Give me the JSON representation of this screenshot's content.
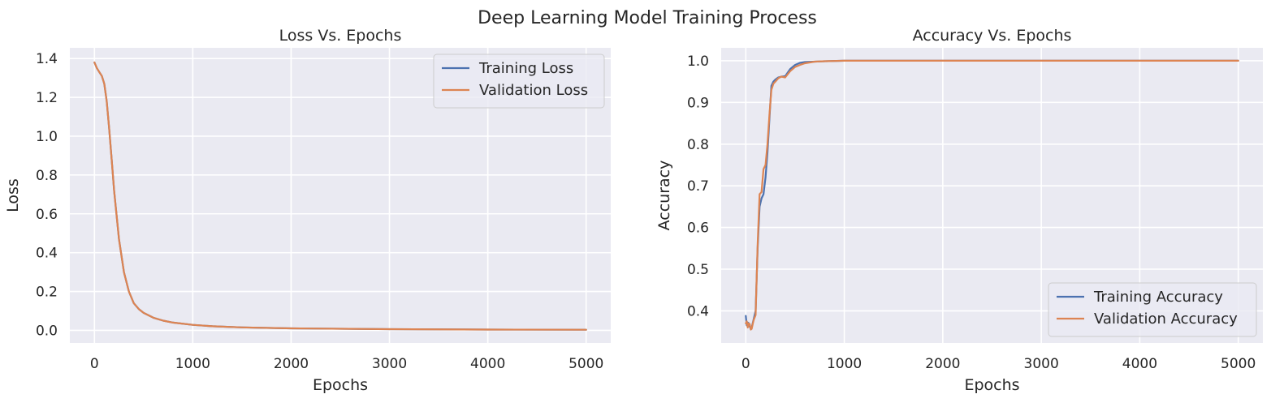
{
  "figure": {
    "title": "Deep Learning Model Training Process"
  },
  "colors": {
    "background": "#EAEAF2",
    "grid": "#FFFFFF",
    "training": "#4C72B0",
    "validation": "#DD8452"
  },
  "chart_data": [
    {
      "type": "line",
      "title": "Loss Vs. Epochs",
      "xlabel": "Epochs",
      "ylabel": "Loss",
      "xlim": [
        -250,
        5250
      ],
      "ylim": [
        -0.065,
        1.455
      ],
      "xticks": [
        0,
        1000,
        2000,
        3000,
        4000,
        5000
      ],
      "xtick_labels": [
        "0",
        "1000",
        "2000",
        "3000",
        "4000",
        "5000"
      ],
      "yticks": [
        0.0,
        0.2,
        0.4,
        0.6,
        0.8,
        1.0,
        1.2,
        1.4
      ],
      "ytick_labels": [
        "0.0",
        "0.2",
        "0.4",
        "0.6",
        "0.8",
        "1.0",
        "1.2",
        "1.4"
      ],
      "grid": true,
      "legend": "upper right",
      "series": [
        {
          "name": "Training Loss",
          "x": [
            0,
            25,
            50,
            75,
            100,
            125,
            150,
            175,
            200,
            250,
            300,
            350,
            400,
            450,
            500,
            600,
            700,
            800,
            1000,
            1200,
            1500,
            2000,
            3000,
            4000,
            5000
          ],
          "y": [
            1.38,
            1.35,
            1.33,
            1.31,
            1.27,
            1.18,
            1.04,
            0.88,
            0.72,
            0.47,
            0.3,
            0.2,
            0.14,
            0.11,
            0.09,
            0.065,
            0.05,
            0.04,
            0.028,
            0.021,
            0.015,
            0.01,
            0.006,
            0.004,
            0.003
          ]
        },
        {
          "name": "Validation Loss",
          "x": [
            0,
            25,
            50,
            75,
            100,
            125,
            150,
            175,
            200,
            250,
            300,
            350,
            400,
            450,
            500,
            600,
            700,
            800,
            1000,
            1200,
            1500,
            2000,
            3000,
            4000,
            5000
          ],
          "y": [
            1.38,
            1.35,
            1.33,
            1.31,
            1.27,
            1.18,
            1.04,
            0.88,
            0.72,
            0.47,
            0.3,
            0.2,
            0.14,
            0.11,
            0.09,
            0.065,
            0.05,
            0.04,
            0.028,
            0.021,
            0.015,
            0.01,
            0.006,
            0.004,
            0.003
          ]
        }
      ]
    },
    {
      "type": "line",
      "title": "Accuracy Vs. Epochs",
      "xlabel": "Epochs",
      "ylabel": "Accuracy",
      "xlim": [
        -250,
        5250
      ],
      "ylim": [
        0.323,
        1.031
      ],
      "xticks": [
        0,
        1000,
        2000,
        3000,
        4000,
        5000
      ],
      "xtick_labels": [
        "0",
        "1000",
        "2000",
        "3000",
        "4000",
        "5000"
      ],
      "yticks": [
        0.4,
        0.5,
        0.6,
        0.7,
        0.8,
        0.9,
        1.0
      ],
      "ytick_labels": [
        "0.4",
        "0.5",
        "0.6",
        "0.7",
        "0.8",
        "0.9",
        "1.0"
      ],
      "grid": true,
      "legend": "lower right",
      "series": [
        {
          "name": "Training Accuracy",
          "x": [
            0,
            10,
            20,
            30,
            40,
            50,
            60,
            70,
            80,
            100,
            120,
            140,
            160,
            180,
            200,
            220,
            240,
            260,
            280,
            300,
            330,
            360,
            400,
            450,
            500,
            550,
            600,
            700,
            800,
            1000,
            2000,
            3000,
            4000,
            5000
          ],
          "y": [
            0.388,
            0.365,
            0.372,
            0.37,
            0.362,
            0.357,
            0.36,
            0.37,
            0.38,
            0.4,
            0.55,
            0.65,
            0.67,
            0.68,
            0.72,
            0.78,
            0.86,
            0.94,
            0.95,
            0.955,
            0.96,
            0.962,
            0.963,
            0.98,
            0.99,
            0.995,
            0.997,
            0.998,
            0.999,
            1.0,
            1.0,
            1.0,
            1.0,
            1.0
          ]
        },
        {
          "name": "Validation Accuracy",
          "x": [
            0,
            10,
            20,
            30,
            40,
            50,
            60,
            70,
            80,
            100,
            120,
            140,
            160,
            180,
            200,
            220,
            240,
            260,
            280,
            300,
            330,
            360,
            400,
            450,
            500,
            550,
            600,
            700,
            800,
            1000,
            2000,
            3000,
            4000,
            5000
          ],
          "y": [
            0.37,
            0.375,
            0.36,
            0.37,
            0.368,
            0.355,
            0.357,
            0.368,
            0.378,
            0.39,
            0.56,
            0.68,
            0.685,
            0.74,
            0.75,
            0.8,
            0.87,
            0.93,
            0.945,
            0.95,
            0.958,
            0.962,
            0.96,
            0.975,
            0.985,
            0.99,
            0.994,
            0.998,
            0.999,
            1.0,
            1.0,
            1.0,
            1.0,
            1.0
          ]
        }
      ]
    }
  ]
}
